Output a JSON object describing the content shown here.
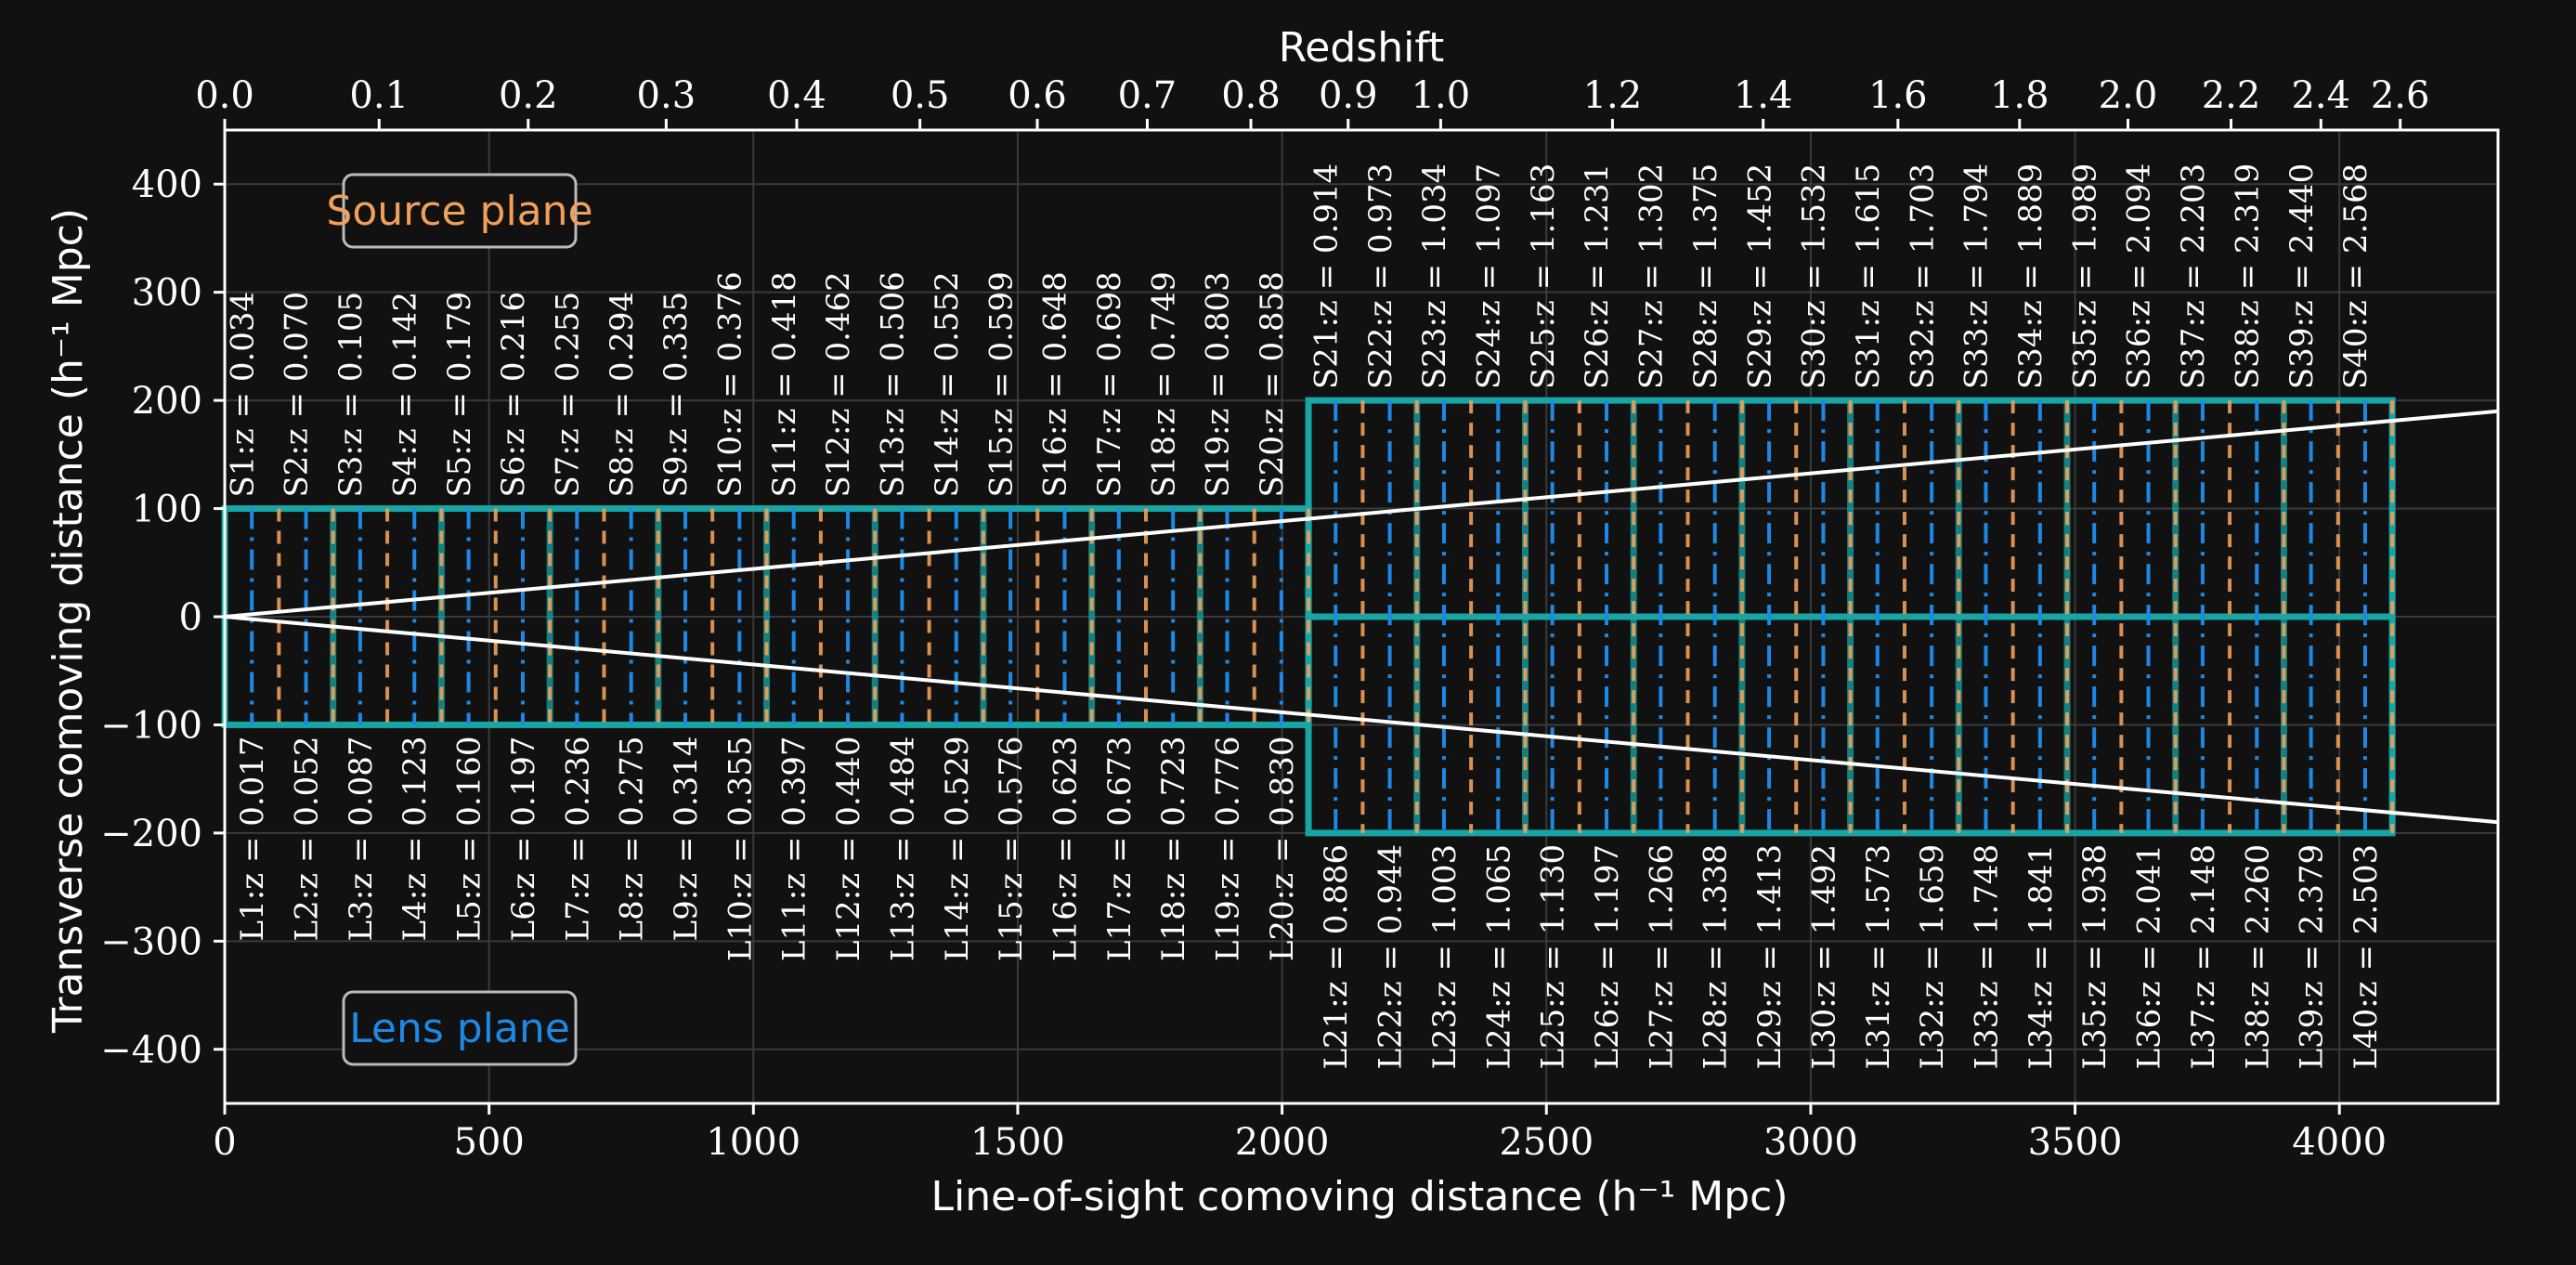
{
  "chart_data": {
    "type": "line",
    "xlabel": "Line-of-sight comoving distance (h⁻¹ Mpc)",
    "ylabel": "Transverse comoving distance (h⁻¹ Mpc)",
    "top_xlabel": "Redshift",
    "xlim": [
      0,
      4300
    ],
    "ylim": [
      -450,
      450
    ],
    "grid": true,
    "x_ticks": [
      0,
      500,
      1000,
      1500,
      2000,
      2500,
      3000,
      3500,
      4000
    ],
    "y_ticks": [
      400,
      300,
      200,
      100,
      0,
      -100,
      -200,
      -300,
      -400
    ],
    "y_tick_labels": [
      "400",
      "300",
      "200",
      "100",
      "0",
      "−100",
      "−200",
      "−300",
      "−400"
    ],
    "redshift_ticks": [
      {
        "label": "0.0",
        "d": 0
      },
      {
        "label": "0.1",
        "d": 292
      },
      {
        "label": "0.2",
        "d": 574
      },
      {
        "label": "0.3",
        "d": 835
      },
      {
        "label": "0.4",
        "d": 1082
      },
      {
        "label": "0.5",
        "d": 1315
      },
      {
        "label": "0.6",
        "d": 1537
      },
      {
        "label": "0.7",
        "d": 1745
      },
      {
        "label": "0.8",
        "d": 1941
      },
      {
        "label": "0.9",
        "d": 2125
      },
      {
        "label": "1.0",
        "d": 2300
      },
      {
        "label": "1.2",
        "d": 2625
      },
      {
        "label": "1.4",
        "d": 2910
      },
      {
        "label": "1.6",
        "d": 3165
      },
      {
        "label": "1.8",
        "d": 3395
      },
      {
        "label": "2.0",
        "d": 3600
      },
      {
        "label": "2.2",
        "d": 3795
      },
      {
        "label": "2.4",
        "d": 3965
      },
      {
        "label": "2.6",
        "d": 4115
      }
    ],
    "boxes": [
      {
        "x0": 0,
        "x1": 2050,
        "y0": -100,
        "y1": 100,
        "grid_step_x": 205,
        "grid_step_y": 200
      },
      {
        "x0": 2050,
        "x1": 4100,
        "y0": -200,
        "y1": 200,
        "grid_step_x": 205,
        "grid_step_y": 200
      }
    ],
    "box_color": "#17a5a5",
    "source_color": "#f0a05a",
    "lens_color": "#1e88e5",
    "cone": {
      "x_end": 4300,
      "y_end": 190,
      "color": "#ffffff"
    },
    "source_planes": [
      {
        "name": "S1",
        "z": "0.034",
        "d": 102.5
      },
      {
        "name": "S2",
        "z": "0.070",
        "d": 205
      },
      {
        "name": "S3",
        "z": "0.105",
        "d": 307.5
      },
      {
        "name": "S4",
        "z": "0.142",
        "d": 410
      },
      {
        "name": "S5",
        "z": "0.179",
        "d": 512.5
      },
      {
        "name": "S6",
        "z": "0.216",
        "d": 615
      },
      {
        "name": "S7",
        "z": "0.255",
        "d": 717.5
      },
      {
        "name": "S8",
        "z": "0.294",
        "d": 820
      },
      {
        "name": "S9",
        "z": "0.335",
        "d": 922.5
      },
      {
        "name": "S10",
        "z": "0.376",
        "d": 1025
      },
      {
        "name": "S11",
        "z": "0.418",
        "d": 1127.5
      },
      {
        "name": "S12",
        "z": "0.462",
        "d": 1230
      },
      {
        "name": "S13",
        "z": "0.506",
        "d": 1332.5
      },
      {
        "name": "S14",
        "z": "0.552",
        "d": 1435
      },
      {
        "name": "S15",
        "z": "0.599",
        "d": 1537.5
      },
      {
        "name": "S16",
        "z": "0.648",
        "d": 1640
      },
      {
        "name": "S17",
        "z": "0.698",
        "d": 1742.5
      },
      {
        "name": "S18",
        "z": "0.749",
        "d": 1845
      },
      {
        "name": "S19",
        "z": "0.803",
        "d": 1947.5
      },
      {
        "name": "S20",
        "z": "0.858",
        "d": 2050
      },
      {
        "name": "S21",
        "z": "0.914",
        "d": 2152.5
      },
      {
        "name": "S22",
        "z": "0.973",
        "d": 2255
      },
      {
        "name": "S23",
        "z": "1.034",
        "d": 2357.5
      },
      {
        "name": "S24",
        "z": "1.097",
        "d": 2460
      },
      {
        "name": "S25",
        "z": "1.163",
        "d": 2562.5
      },
      {
        "name": "S26",
        "z": "1.231",
        "d": 2665
      },
      {
        "name": "S27",
        "z": "1.302",
        "d": 2767.5
      },
      {
        "name": "S28",
        "z": "1.375",
        "d": 2870
      },
      {
        "name": "S29",
        "z": "1.452",
        "d": 2972.5
      },
      {
        "name": "S30",
        "z": "1.532",
        "d": 3075
      },
      {
        "name": "S31",
        "z": "1.615",
        "d": 3177.5
      },
      {
        "name": "S32",
        "z": "1.703",
        "d": 3280
      },
      {
        "name": "S33",
        "z": "1.794",
        "d": 3382.5
      },
      {
        "name": "S34",
        "z": "1.889",
        "d": 3485
      },
      {
        "name": "S35",
        "z": "1.989",
        "d": 3587.5
      },
      {
        "name": "S36",
        "z": "2.094",
        "d": 3690
      },
      {
        "name": "S37",
        "z": "2.203",
        "d": 3792.5
      },
      {
        "name": "S38",
        "z": "2.319",
        "d": 3895
      },
      {
        "name": "S39",
        "z": "2.440",
        "d": 3997.5
      },
      {
        "name": "S40",
        "z": "2.568",
        "d": 4100
      }
    ],
    "lens_planes": [
      {
        "name": "L1",
        "z": "0.017",
        "d": 51.25
      },
      {
        "name": "L2",
        "z": "0.052",
        "d": 153.75
      },
      {
        "name": "L3",
        "z": "0.087",
        "d": 256.25
      },
      {
        "name": "L4",
        "z": "0.123",
        "d": 358.75
      },
      {
        "name": "L5",
        "z": "0.160",
        "d": 461.25
      },
      {
        "name": "L6",
        "z": "0.197",
        "d": 563.75
      },
      {
        "name": "L7",
        "z": "0.236",
        "d": 666.25
      },
      {
        "name": "L8",
        "z": "0.275",
        "d": 768.75
      },
      {
        "name": "L9",
        "z": "0.314",
        "d": 871.25
      },
      {
        "name": "L10",
        "z": "0.355",
        "d": 973.75
      },
      {
        "name": "L11",
        "z": "0.397",
        "d": 1076.25
      },
      {
        "name": "L12",
        "z": "0.440",
        "d": 1178.75
      },
      {
        "name": "L13",
        "z": "0.484",
        "d": 1281.25
      },
      {
        "name": "L14",
        "z": "0.529",
        "d": 1383.75
      },
      {
        "name": "L15",
        "z": "0.576",
        "d": 1486.25
      },
      {
        "name": "L16",
        "z": "0.623",
        "d": 1588.75
      },
      {
        "name": "L17",
        "z": "0.673",
        "d": 1691.25
      },
      {
        "name": "L18",
        "z": "0.723",
        "d": 1793.75
      },
      {
        "name": "L19",
        "z": "0.776",
        "d": 1896.25
      },
      {
        "name": "L20",
        "z": "0.830",
        "d": 1998.75
      },
      {
        "name": "L21",
        "z": "0.886",
        "d": 2101.25
      },
      {
        "name": "L22",
        "z": "0.944",
        "d": 2203.75
      },
      {
        "name": "L23",
        "z": "1.003",
        "d": 2306.25
      },
      {
        "name": "L24",
        "z": "1.065",
        "d": 2408.75
      },
      {
        "name": "L25",
        "z": "1.130",
        "d": 2511.25
      },
      {
        "name": "L26",
        "z": "1.197",
        "d": 2613.75
      },
      {
        "name": "L27",
        "z": "1.266",
        "d": 2716.25
      },
      {
        "name": "L28",
        "z": "1.338",
        "d": 2818.75
      },
      {
        "name": "L29",
        "z": "1.413",
        "d": 2921.25
      },
      {
        "name": "L30",
        "z": "1.492",
        "d": 3023.75
      },
      {
        "name": "L31",
        "z": "1.573",
        "d": 3126.25
      },
      {
        "name": "L32",
        "z": "1.659",
        "d": 3228.75
      },
      {
        "name": "L33",
        "z": "1.748",
        "d": 3331.25
      },
      {
        "name": "L34",
        "z": "1.841",
        "d": 3433.75
      },
      {
        "name": "L35",
        "z": "1.938",
        "d": 3536.25
      },
      {
        "name": "L36",
        "z": "2.041",
        "d": 3638.75
      },
      {
        "name": "L37",
        "z": "2.148",
        "d": 3741.25
      },
      {
        "name": "L38",
        "z": "2.260",
        "d": 3843.75
      },
      {
        "name": "L39",
        "z": "2.379",
        "d": 3946.25
      },
      {
        "name": "L40",
        "z": "2.503",
        "d": 4048.75
      }
    ],
    "legend": [
      {
        "label": "Source plane",
        "color": "#f0a05a",
        "position": "top-left"
      },
      {
        "label": "Lens plane",
        "color": "#1e88e5",
        "position": "bottom-left"
      }
    ]
  }
}
